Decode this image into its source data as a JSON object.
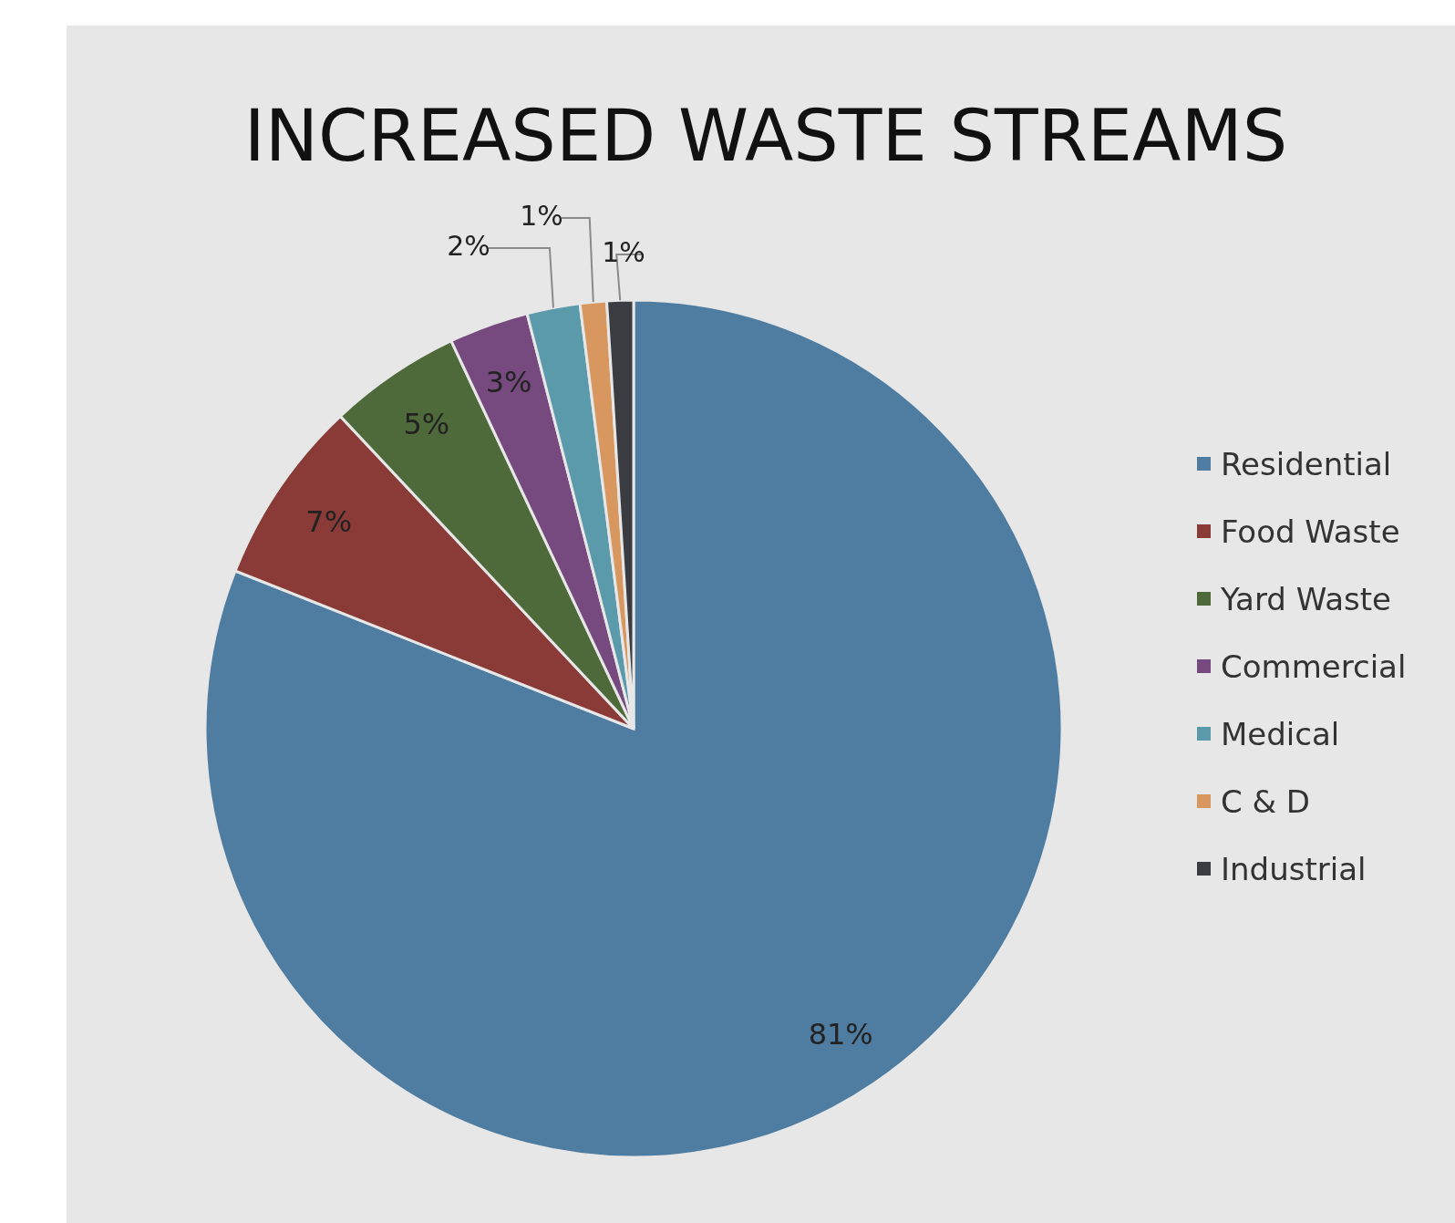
{
  "chart_data": {
    "type": "pie",
    "title": "INCREASED WASTE STREAMS",
    "categories": [
      "Residential",
      "Food Waste",
      "Yard Waste",
      "Commercial",
      "Medical",
      "C & D",
      "Industrial"
    ],
    "values": [
      81,
      7,
      5,
      3,
      2,
      1,
      1
    ],
    "value_labels": [
      "81%",
      "7%",
      "5%",
      "3%",
      "2%",
      "1%",
      "1%"
    ],
    "colors": [
      "#4f7ca1",
      "#8a3b37",
      "#4e6a3b",
      "#76497f",
      "#5b9aab",
      "#d8975f",
      "#3b3b42"
    ],
    "legend": "right"
  }
}
